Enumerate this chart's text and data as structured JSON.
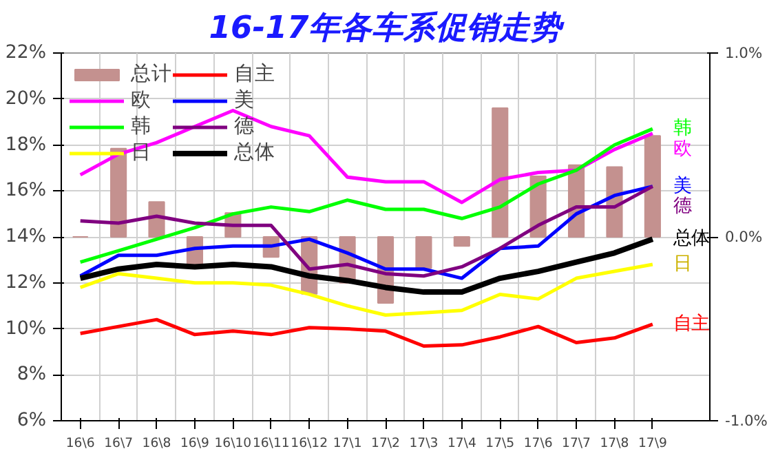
{
  "chart_data": {
    "type": "line",
    "title": "16-17年各车系促销走势",
    "categories": [
      "16\\6",
      "16\\7",
      "16\\8",
      "16\\9",
      "16\\10",
      "16\\11",
      "16\\12",
      "17\\1",
      "17\\2",
      "17\\3",
      "17\\4",
      "17\\5",
      "17\\6",
      "17\\7",
      "17\\8",
      "17\\9"
    ],
    "series": [
      {
        "name": "总计",
        "type": "bar",
        "axis": "y2",
        "color": "#c4918f",
        "values": [
          0,
          0.48,
          0.19,
          -0.16,
          0.13,
          -0.11,
          -0.31,
          -0.25,
          -0.36,
          -0.17,
          -0.05,
          0.7,
          0.33,
          0.39,
          0.38,
          0.55
        ]
      },
      {
        "name": "自主",
        "color": "#ff0000",
        "values": [
          9.8,
          10.1,
          10.4,
          9.75,
          9.9,
          9.75,
          10.05,
          10.0,
          9.9,
          9.25,
          9.3,
          9.65,
          10.1,
          9.4,
          9.6,
          10.2
        ]
      },
      {
        "name": "欧",
        "color": "#ff00ff",
        "values": [
          16.7,
          17.6,
          18.1,
          18.8,
          19.5,
          18.8,
          18.4,
          16.6,
          16.4,
          16.4,
          15.5,
          16.5,
          16.8,
          16.9,
          17.8,
          18.5
        ]
      },
      {
        "name": "美",
        "color": "#0000ff",
        "values": [
          12.3,
          13.2,
          13.2,
          13.5,
          13.6,
          13.6,
          13.9,
          13.3,
          12.6,
          12.6,
          12.2,
          13.5,
          13.6,
          15.0,
          15.8,
          16.2
        ]
      },
      {
        "name": "韩",
        "color": "#00ff00",
        "values": [
          12.9,
          13.4,
          13.9,
          14.4,
          15.0,
          15.3,
          15.1,
          15.6,
          15.2,
          15.2,
          14.8,
          15.3,
          16.3,
          16.9,
          18.0,
          18.7
        ]
      },
      {
        "name": "德",
        "color": "#800080",
        "values": [
          14.7,
          14.6,
          14.9,
          14.6,
          14.5,
          14.5,
          12.6,
          12.8,
          12.4,
          12.3,
          12.7,
          13.5,
          14.5,
          15.3,
          15.3,
          16.2
        ]
      },
      {
        "name": "日",
        "color": "#ffff00",
        "values": [
          11.8,
          12.4,
          12.2,
          12.0,
          12.0,
          11.9,
          11.5,
          11.0,
          10.6,
          10.7,
          10.8,
          11.5,
          11.3,
          12.2,
          12.5,
          12.8
        ]
      },
      {
        "name": "总体",
        "color": "#000000",
        "values": [
          12.2,
          12.6,
          12.8,
          12.7,
          12.8,
          12.7,
          12.3,
          12.1,
          11.8,
          11.6,
          11.6,
          12.2,
          12.5,
          12.9,
          13.3,
          13.9
        ]
      }
    ],
    "annotations": [
      "自主",
      "欧",
      "美",
      "韩",
      "德",
      "日",
      "总体"
    ],
    "ylim": [
      6,
      22
    ],
    "yticks": [
      {
        "value": 6,
        "label": "6%"
      },
      {
        "value": 8,
        "label": "8%"
      },
      {
        "value": 10,
        "label": "10%"
      },
      {
        "value": 12,
        "label": "12%"
      },
      {
        "value": 14,
        "label": "14%"
      },
      {
        "value": 16,
        "label": "16%"
      },
      {
        "value": 18,
        "label": "18%"
      },
      {
        "value": 20,
        "label": "20%"
      },
      {
        "value": 22,
        "label": "22%"
      }
    ],
    "y2lim": [
      -1,
      1
    ],
    "y2ticks": [
      {
        "value": -1,
        "label": "-1.0%"
      },
      {
        "value": 0,
        "label": "0.0%"
      },
      {
        "value": 1,
        "label": "1.0%"
      }
    ],
    "grid": true,
    "legend": "top left"
  }
}
